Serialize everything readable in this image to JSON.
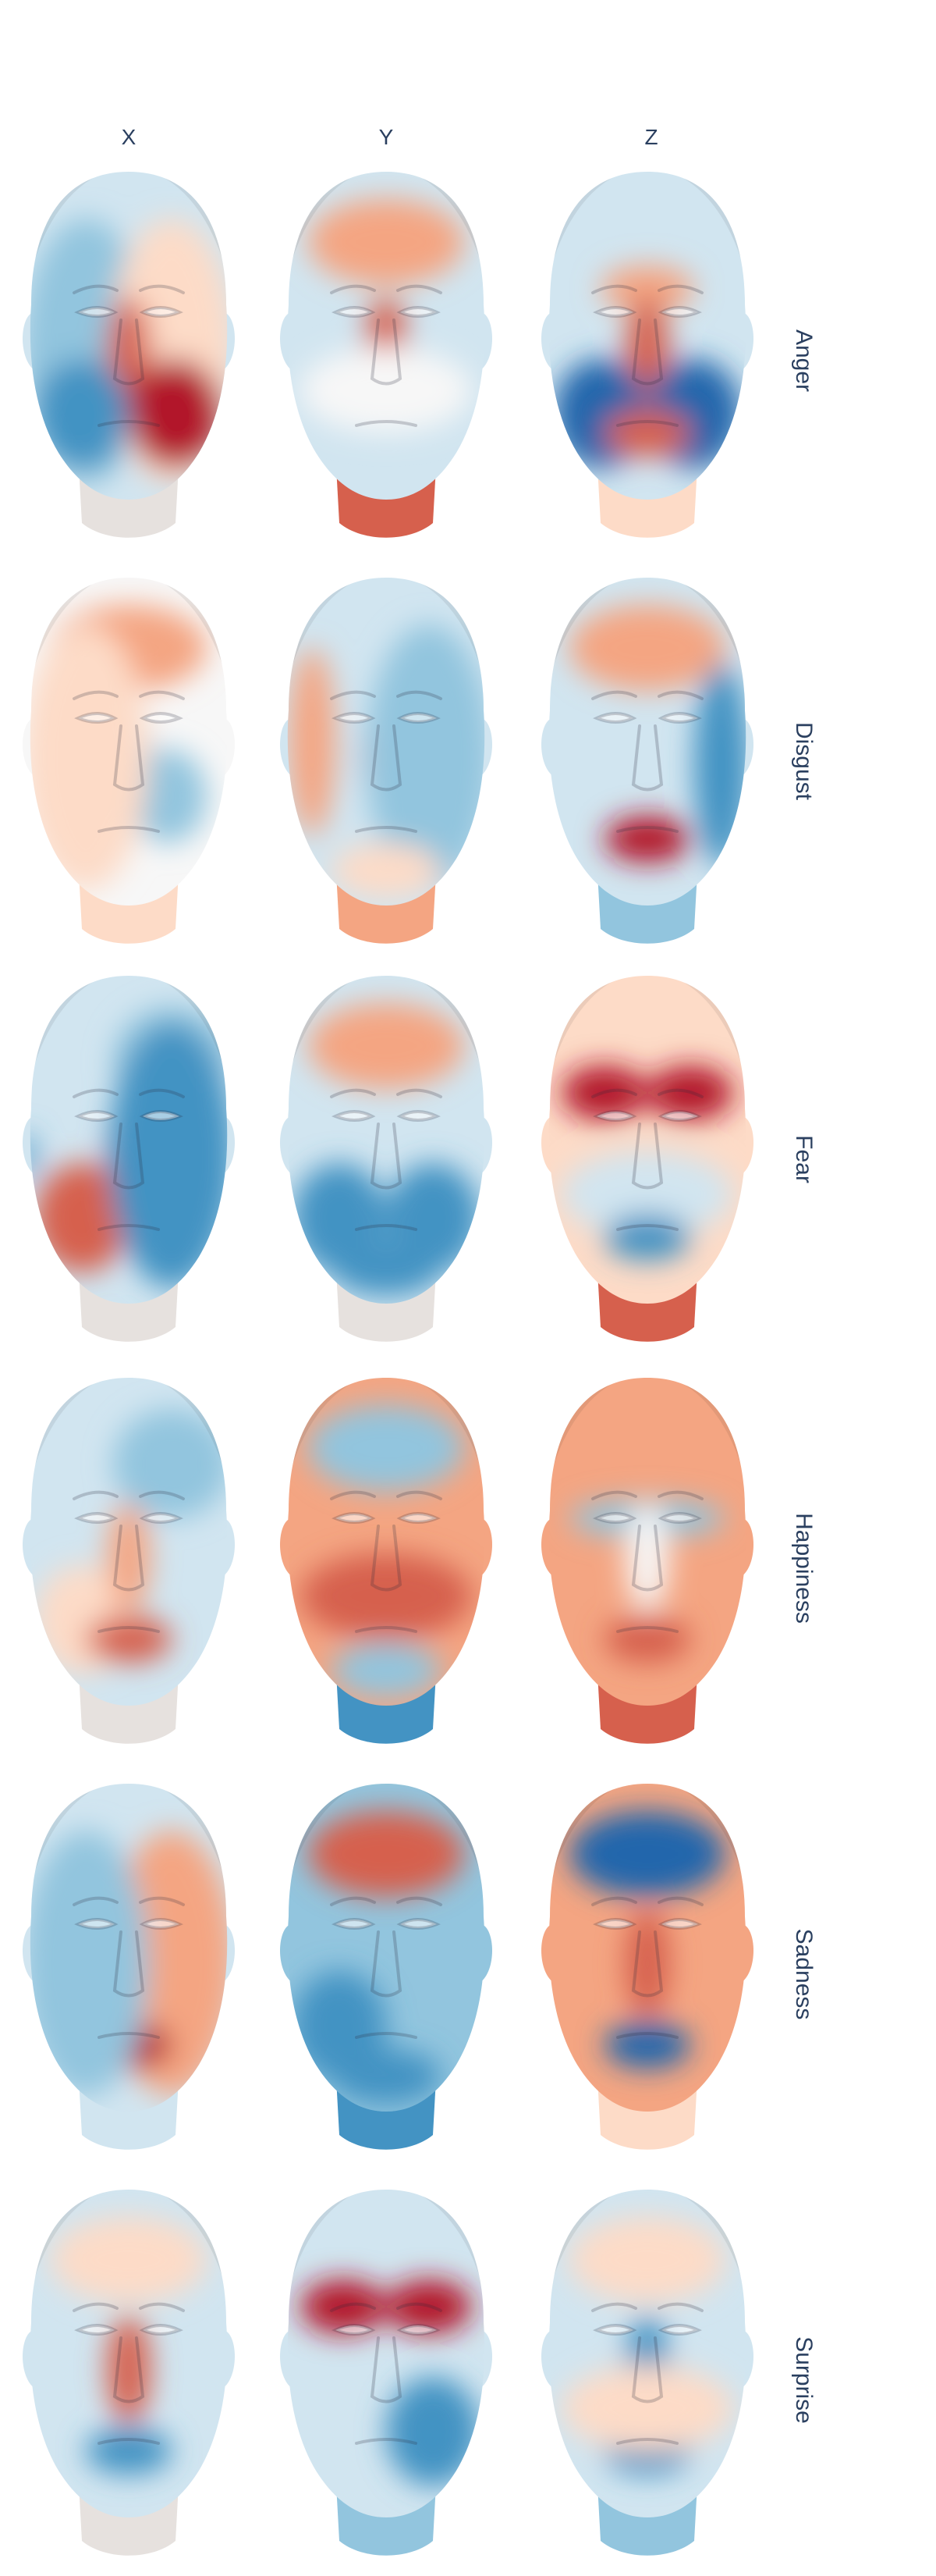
{
  "columns": [
    {
      "label": "X"
    },
    {
      "label": "Y"
    },
    {
      "label": "Z"
    }
  ],
  "rows": [
    {
      "label": "Anger",
      "key": "anger"
    },
    {
      "label": "Disgust",
      "key": "disgust"
    },
    {
      "label": "Fear",
      "key": "fear"
    },
    {
      "label": "Happiness",
      "key": "happiness"
    },
    {
      "label": "Sadness",
      "key": "sadness"
    },
    {
      "label": "Surprise",
      "key": "surprise"
    }
  ],
  "colors": {
    "strong_red": "#b2182b",
    "red": "#d6604d",
    "light_red": "#f4a582",
    "pale_red": "#fddbc7",
    "white": "#f7f7f7",
    "pale_blue": "#d1e5f0",
    "light_blue": "#92c5de",
    "blue": "#4393c3",
    "strong_blue": "#2166ac",
    "neutral_neck": "#e6e1de",
    "text": "#2a3f5f"
  },
  "face_maps": {
    "anger": [
      {
        "base": "pale_blue",
        "neck": "neutral_neck",
        "blobs": [
          [
            "left_half",
            "light_blue"
          ],
          [
            "right_half",
            "pale_red"
          ],
          [
            "nose",
            "red"
          ],
          [
            "lower_right",
            "strong_red"
          ],
          [
            "lower_left",
            "blue"
          ]
        ]
      },
      {
        "base": "pale_blue",
        "neck": "red",
        "blobs": [
          [
            "forehead",
            "light_red"
          ],
          [
            "nose",
            "red"
          ],
          [
            "cheeks",
            "white"
          ]
        ]
      },
      {
        "base": "pale_blue",
        "neck": "pale_red",
        "blobs": [
          [
            "brow_center",
            "light_red"
          ],
          [
            "nose",
            "red"
          ],
          [
            "lower_left",
            "strong_blue"
          ],
          [
            "lower_right",
            "strong_blue"
          ],
          [
            "mouth",
            "red"
          ]
        ]
      }
    ],
    "disgust": [
      {
        "base": "white",
        "neck": "pale_red",
        "blobs": [
          [
            "forehead",
            "light_red"
          ],
          [
            "nose",
            "blue"
          ],
          [
            "right_cheek",
            "light_blue"
          ],
          [
            "left_half",
            "pale_red"
          ]
        ]
      },
      {
        "base": "pale_blue",
        "neck": "light_red",
        "blobs": [
          [
            "left_edge",
            "light_red"
          ],
          [
            "nose",
            "red"
          ],
          [
            "right_half",
            "light_blue"
          ],
          [
            "chin",
            "pale_red"
          ]
        ]
      },
      {
        "base": "pale_blue",
        "neck": "light_blue",
        "blobs": [
          [
            "forehead",
            "light_red"
          ],
          [
            "mouth",
            "strong_red"
          ],
          [
            "right_edge",
            "blue"
          ]
        ]
      }
    ],
    "fear": [
      {
        "base": "pale_blue",
        "neck": "neutral_neck",
        "blobs": [
          [
            "top_right",
            "light_blue"
          ],
          [
            "lower_left",
            "red"
          ],
          [
            "nose",
            "strong_red"
          ],
          [
            "right_half",
            "blue"
          ],
          [
            "left_ear",
            "blue"
          ]
        ]
      },
      {
        "base": "pale_blue",
        "neck": "neutral_neck",
        "blobs": [
          [
            "forehead",
            "light_red"
          ],
          [
            "lower_left",
            "blue"
          ],
          [
            "lower_right",
            "blue"
          ],
          [
            "chin",
            "blue"
          ]
        ]
      },
      {
        "base": "pale_red",
        "neck": "red",
        "blobs": [
          [
            "brow_left",
            "strong_red"
          ],
          [
            "brow_right",
            "strong_red"
          ],
          [
            "cheeks",
            "pale_blue"
          ],
          [
            "mouth",
            "blue"
          ]
        ]
      }
    ],
    "happiness": [
      {
        "base": "pale_blue",
        "neck": "neutral_neck",
        "blobs": [
          [
            "top_right",
            "light_blue"
          ],
          [
            "lower_left",
            "pale_red"
          ],
          [
            "nose",
            "light_red"
          ],
          [
            "mouth",
            "red"
          ]
        ]
      },
      {
        "base": "light_red",
        "neck": "blue",
        "blobs": [
          [
            "forehead",
            "light_blue"
          ],
          [
            "cheeks",
            "red"
          ],
          [
            "chin",
            "light_blue"
          ]
        ]
      },
      {
        "base": "light_red",
        "neck": "red",
        "blobs": [
          [
            "eyes",
            "light_blue"
          ],
          [
            "nose",
            "white"
          ],
          [
            "mouth",
            "red"
          ]
        ]
      }
    ],
    "sadness": [
      {
        "base": "pale_blue",
        "neck": "pale_blue",
        "blobs": [
          [
            "right_half",
            "light_red"
          ],
          [
            "mouth",
            "strong_red"
          ],
          [
            "left_half",
            "light_blue"
          ]
        ]
      },
      {
        "base": "light_blue",
        "neck": "blue",
        "blobs": [
          [
            "forehead",
            "red"
          ],
          [
            "lower_left",
            "blue"
          ],
          [
            "chin",
            "blue"
          ]
        ]
      },
      {
        "base": "light_red",
        "neck": "pale_red",
        "blobs": [
          [
            "forehead",
            "strong_blue"
          ],
          [
            "mouth",
            "strong_blue"
          ],
          [
            "nose",
            "red"
          ]
        ]
      }
    ],
    "surprise": [
      {
        "base": "pale_blue",
        "neck": "neutral_neck",
        "blobs": [
          [
            "nose",
            "red"
          ],
          [
            "mouth",
            "blue"
          ],
          [
            "forehead",
            "pale_red"
          ]
        ]
      },
      {
        "base": "pale_blue",
        "neck": "light_blue",
        "blobs": [
          [
            "brow_left",
            "strong_red"
          ],
          [
            "brow_right",
            "strong_red"
          ],
          [
            "lower_right",
            "blue"
          ]
        ]
      },
      {
        "base": "pale_blue",
        "neck": "light_blue",
        "blobs": [
          [
            "nose",
            "blue"
          ],
          [
            "mouth",
            "blue"
          ],
          [
            "forehead",
            "pale_red"
          ],
          [
            "cheeks",
            "pale_red"
          ]
        ]
      }
    ]
  }
}
